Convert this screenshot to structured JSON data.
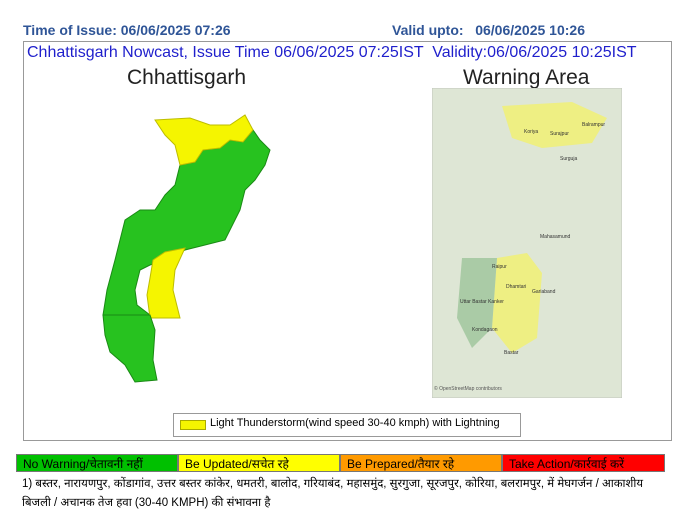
{
  "header": {
    "issue_time": "Time of Issue: 06/06/2025 07:26",
    "valid_upto": "Valid upto:   06/06/2025 10:26"
  },
  "title": "Chhattisgarh Nowcast, Issue Time 06/06/2025 07:25IST  Validity:06/06/2025 10:25IST",
  "left_map": {
    "title": "Chhattisgarh"
  },
  "right_map": {
    "title": "Warning Area",
    "labels": [
      "Koriya",
      "Surajpur",
      "Balrampur",
      "Surguja",
      "Mahasamund",
      "Raipur",
      "Dhamtari",
      "Gariaband",
      "Uttar Bastar Kanker",
      "Kondagaon",
      "Bastar"
    ],
    "credit": "© OpenStreetMap contributors"
  },
  "legend": {
    "label": "Light Thunderstorm(wind speed 30-40 kmph) with Lightning"
  },
  "scale": [
    "No Warning/चेतावनी नहीं",
    "Be Updated/सचेत रहे",
    "Be Prepared/तैयार रहे",
    "Take Action/कार्रवाई करें"
  ],
  "footer": "1) बस्तर, नारायणपुर, कोंडागांव, उत्तर बस्तर कांकेर, धमतरी, बालोद, गरियाबंद, महासमुंद, सुरगुजा, सूरजपुर, कोरिया, बलरामपुर,  में मेघगर्जन / आकाशीय बिजली / अचानक तेज हवा (30-40 KMPH) की संभावना है"
}
